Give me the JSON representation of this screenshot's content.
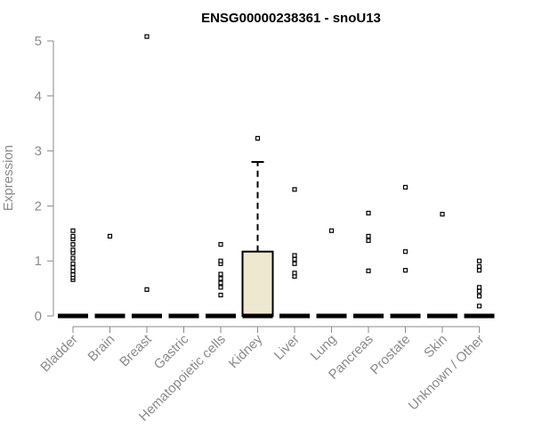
{
  "chart_data": {
    "type": "box",
    "title": "ENSG00000238361 - snoU13",
    "xlabel": "",
    "ylabel": "Expression",
    "ylim": [
      0,
      5
    ],
    "yticks": [
      0,
      1,
      2,
      3,
      4,
      5
    ],
    "grid": false,
    "categories": [
      "Bladder",
      "Brain",
      "Breast",
      "Gastric",
      "Hematopoietic cells",
      "Kidney",
      "Liver",
      "Lung",
      "Pancreas",
      "Prostate",
      "Skin",
      "Unknown / Other"
    ],
    "boxes": [
      {
        "category": "Bladder",
        "q1": 0,
        "median": 0,
        "q3": 0,
        "whisker_low": 0,
        "whisker_high": 0,
        "outliers": [
          0.66,
          0.7,
          0.75,
          0.82,
          0.88,
          0.95,
          1.05,
          1.15,
          1.2,
          1.3,
          1.4,
          1.45,
          1.55
        ]
      },
      {
        "category": "Brain",
        "q1": 0,
        "median": 0,
        "q3": 0,
        "whisker_low": 0,
        "whisker_high": 0,
        "outliers": [
          1.45
        ]
      },
      {
        "category": "Breast",
        "q1": 0,
        "median": 0,
        "q3": 0,
        "whisker_low": 0,
        "whisker_high": 0,
        "outliers": [
          0.48,
          5.08
        ]
      },
      {
        "category": "Gastric",
        "q1": 0,
        "median": 0,
        "q3": 0,
        "whisker_low": 0,
        "whisker_high": 0,
        "outliers": []
      },
      {
        "category": "Hematopoietic cells",
        "q1": 0,
        "median": 0,
        "q3": 0,
        "whisker_low": 0,
        "whisker_high": 0,
        "outliers": [
          0.38,
          0.52,
          0.6,
          0.68,
          0.76,
          0.95,
          1.0,
          1.3
        ]
      },
      {
        "category": "Kidney",
        "q1": 0,
        "median": 0,
        "q3": 1.17,
        "whisker_low": 0,
        "whisker_high": 2.8,
        "outliers": [
          3.23
        ]
      },
      {
        "category": "Liver",
        "q1": 0,
        "median": 0,
        "q3": 0,
        "whisker_low": 0,
        "whisker_high": 0,
        "outliers": [
          0.72,
          0.78,
          0.95,
          1.03,
          1.1,
          2.3
        ]
      },
      {
        "category": "Lung",
        "q1": 0,
        "median": 0,
        "q3": 0,
        "whisker_low": 0,
        "whisker_high": 0,
        "outliers": [
          1.55
        ]
      },
      {
        "category": "Pancreas",
        "q1": 0,
        "median": 0,
        "q3": 0,
        "whisker_low": 0,
        "whisker_high": 0,
        "outliers": [
          0.82,
          1.37,
          1.45,
          1.87
        ]
      },
      {
        "category": "Prostate",
        "q1": 0,
        "median": 0,
        "q3": 0,
        "whisker_low": 0,
        "whisker_high": 0,
        "outliers": [
          0.83,
          1.17,
          2.34
        ]
      },
      {
        "category": "Skin",
        "q1": 0,
        "median": 0,
        "q3": 0,
        "whisker_low": 0,
        "whisker_high": 0,
        "outliers": [
          1.85
        ]
      },
      {
        "category": "Unknown / Other",
        "q1": 0,
        "median": 0,
        "q3": 0,
        "whisker_low": 0,
        "whisker_high": 0,
        "outliers": [
          0.18,
          0.36,
          0.45,
          0.52,
          0.83,
          0.9,
          1.0
        ]
      }
    ],
    "colors": {
      "box_fill": "#ede8cf",
      "box_stroke": "#000000",
      "axis": "#8a8a8a",
      "title": "#000000"
    }
  }
}
